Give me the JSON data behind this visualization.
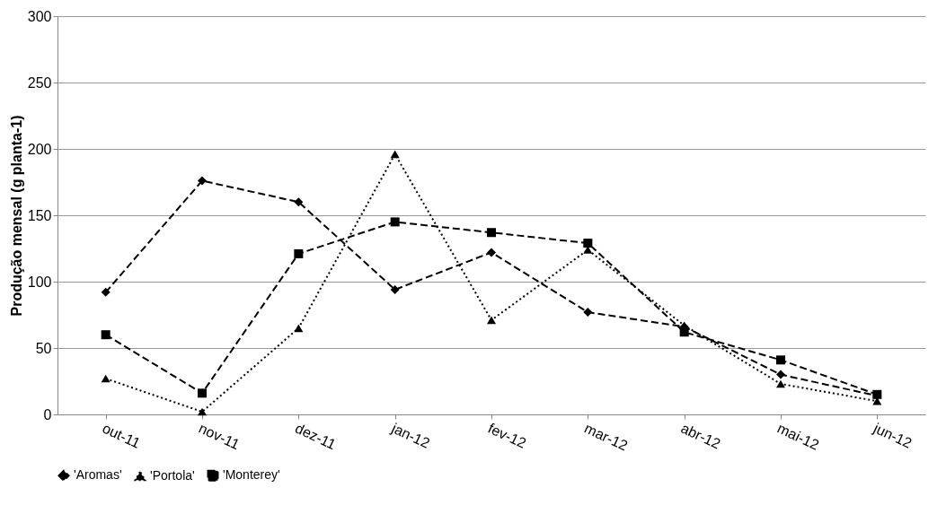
{
  "chart_data": {
    "type": "line",
    "ylabel": "Produção mensal (g planta-1)",
    "categories": [
      "out-11",
      "nov-11",
      "dez-11",
      "jan-12",
      "fev-12",
      "mar-12",
      "abr-12",
      "mai-12",
      "jun-12"
    ],
    "ylim": [
      0,
      300
    ],
    "yticks": [
      0,
      50,
      100,
      150,
      200,
      250,
      300
    ],
    "grid": "y",
    "legend": "bottom",
    "series": [
      {
        "name": "'Aromas'",
        "color": "#000000",
        "marker": "diamond",
        "line_style": "dashed",
        "values": [
          92,
          176,
          160,
          94,
          122,
          77,
          66,
          30,
          14
        ]
      },
      {
        "name": "'Portola'",
        "color": "#000000",
        "marker": "triangle",
        "line_style": "dotted",
        "values": [
          27,
          2,
          65,
          196,
          71,
          124,
          67,
          23,
          10
        ]
      },
      {
        "name": "'Monterey'",
        "color": "#000000",
        "marker": "square",
        "line_style": "dashed",
        "values": [
          60,
          16,
          121,
          145,
          137,
          129,
          62,
          41,
          15
        ]
      }
    ]
  }
}
